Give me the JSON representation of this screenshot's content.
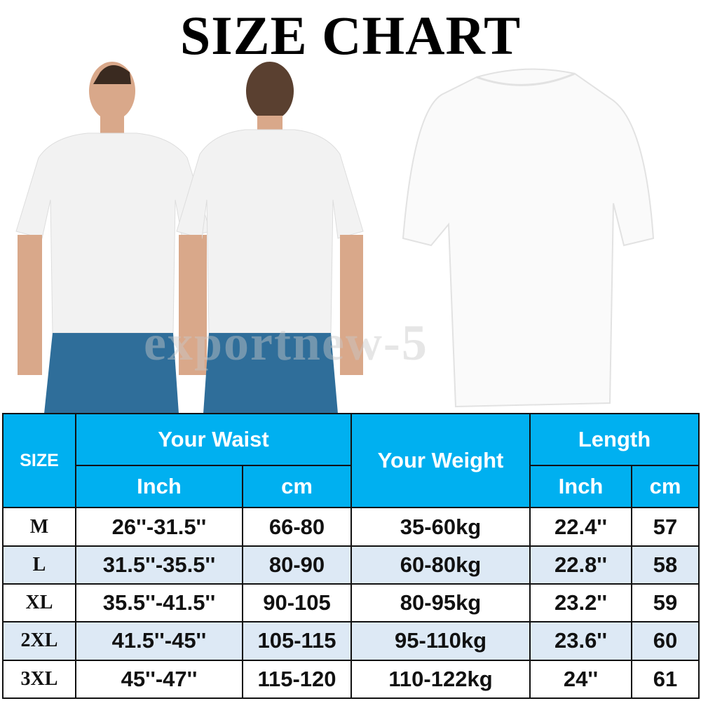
{
  "title": "SIZE CHART",
  "watermark": "exportnew-5",
  "colors": {
    "header": "#00b0f0",
    "alt_row": "#dde9f5"
  },
  "table": {
    "headers": {
      "size": "SIZE",
      "waist": "Your Waist",
      "waist_inch": "Inch",
      "waist_cm": "cm",
      "weight": "Your Weight",
      "length": "Length",
      "length_inch": "Inch",
      "length_cm": "cm"
    },
    "rows": [
      {
        "size": "M",
        "waist_inch": "26''-31.5''",
        "waist_cm": "66-80",
        "weight": "35-60kg",
        "length_inch": "22.4''",
        "length_cm": "57"
      },
      {
        "size": "L",
        "waist_inch": "31.5''-35.5''",
        "waist_cm": "80-90",
        "weight": "60-80kg",
        "length_inch": "22.8''",
        "length_cm": "58"
      },
      {
        "size": "XL",
        "waist_inch": "35.5''-41.5''",
        "waist_cm": "90-105",
        "weight": "80-95kg",
        "length_inch": "23.2''",
        "length_cm": "59"
      },
      {
        "size": "2XL",
        "waist_inch": "41.5''-45''",
        "waist_cm": "105-115",
        "weight": "95-110kg",
        "length_inch": "23.6''",
        "length_cm": "60"
      },
      {
        "size": "3XL",
        "waist_inch": "45''-47''",
        "waist_cm": "115-120",
        "weight": "110-122kg",
        "length_inch": "24''",
        "length_cm": "61"
      }
    ]
  }
}
